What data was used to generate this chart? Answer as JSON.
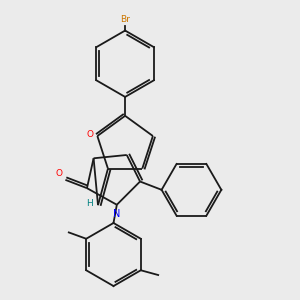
{
  "background_color": "#ebebeb",
  "bond_color": "#1a1a1a",
  "atom_colors": {
    "Br": "#cc7700",
    "O_furan": "#ff0000",
    "O_carbonyl": "#ff0000",
    "N": "#0000ff",
    "C": "#1a1a1a",
    "H": "#008080"
  },
  "figsize": [
    3.0,
    3.0
  ],
  "dpi": 100
}
